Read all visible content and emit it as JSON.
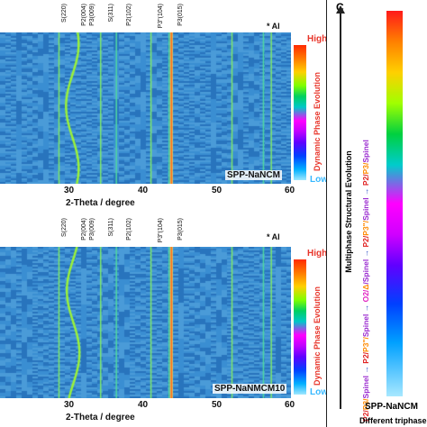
{
  "panel_top": {
    "peaks": [
      "S(220)",
      "P2(004)",
      "P3(009)",
      "S(311)",
      "P2(102)",
      "P3\"(104)",
      "P3(015)"
    ],
    "al_marker": "* Al",
    "sample": "SPP-NaNCM",
    "ticks": [
      "30",
      "40",
      "50",
      "60"
    ],
    "xlabel": "2-Theta / degree",
    "cbar_high": "High",
    "cbar_low": "Low",
    "cbar_title": "Dynamic Phase Evolution"
  },
  "panel_bottom": {
    "peaks": [
      "S(220)",
      "P2(004)",
      "P3(009)",
      "S(311)",
      "P2(102)",
      "P3\"(104)",
      "P3(015)"
    ],
    "al_marker": "* Al",
    "sample": "SPP-NaNMCM10",
    "ticks": [
      "30",
      "40",
      "50",
      "60"
    ],
    "xlabel": "2-Theta / degree",
    "cbar_high": "High",
    "cbar_low": "Low",
    "cbar_title": "Dynamic Phase Evolution"
  },
  "panel_c": {
    "letter": "C",
    "y_title": "Multiphase Structural Evolution",
    "sequence": [
      {
        "text": "P2/",
        "color": "red"
      },
      {
        "text": "P3/",
        "color": "org"
      },
      {
        "text": "Spinel",
        "color": "pur"
      },
      {
        "text": " → ",
        "color": "blu"
      },
      {
        "text": "P2/",
        "color": "red"
      },
      {
        "text": "P3\"/",
        "color": "org"
      },
      {
        "text": "Spinel",
        "color": "pur"
      },
      {
        "text": " → ",
        "color": "blu"
      },
      {
        "text": "O2/",
        "color": "mag"
      },
      {
        "text": "Δ",
        "color": "org"
      },
      {
        "text": "/Spinel",
        "color": "pur"
      },
      {
        "text": " → ",
        "color": "blu"
      },
      {
        "text": "P2/",
        "color": "red"
      },
      {
        "text": "P3\"/",
        "color": "org"
      },
      {
        "text": "Spinel",
        "color": "pur"
      },
      {
        "text": " → ",
        "color": "blu"
      },
      {
        "text": "P2/",
        "color": "red"
      },
      {
        "text": "P3/",
        "color": "org"
      },
      {
        "text": "Spinel",
        "color": "pur"
      }
    ],
    "bottom_label": "SPP-NaNCM",
    "bottom_sub": "Different triphase e"
  },
  "chart_data": [
    {
      "type": "heatmap",
      "title": "",
      "xlabel": "2-Theta / degree",
      "x_range": [
        23,
        60
      ],
      "x_ticks": [
        30,
        40,
        50,
        60
      ],
      "peak_positions": [
        30.5,
        32.2,
        35.8,
        37.8,
        42.2,
        44.5,
        52.5,
        56.5,
        57.5
      ],
      "al_peak": 44.8,
      "color_scale": [
        "High",
        "Low"
      ],
      "sample": "SPP-NaNCM"
    },
    {
      "type": "heatmap",
      "title": "",
      "xlabel": "2-Theta / degree",
      "x_range": [
        23,
        60
      ],
      "x_ticks": [
        30,
        40,
        50,
        60
      ],
      "peak_positions": [
        30.5,
        32.3,
        35.8,
        37.8,
        42.2,
        44.5,
        52.5,
        56.5,
        57.5
      ],
      "al_peak": 44.8,
      "color_scale": [
        "High",
        "Low"
      ],
      "sample": "SPP-NaNMCM10"
    }
  ]
}
